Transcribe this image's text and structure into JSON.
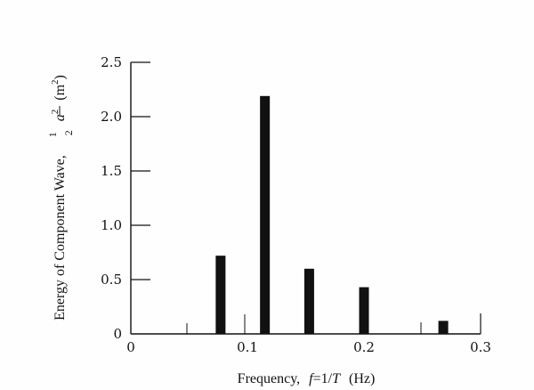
{
  "chart_data": {
    "type": "bar",
    "x": [
      0.077,
      0.115,
      0.153,
      0.2,
      0.268
    ],
    "values": [
      0.72,
      2.19,
      0.6,
      0.43,
      0.12
    ],
    "xlim": [
      0,
      0.3
    ],
    "ylim": [
      0,
      2.5
    ],
    "x_ticks": [
      "0",
      "0.1",
      "0.2",
      "0.3"
    ],
    "y_ticks": [
      "0",
      "0.5",
      "1.0",
      "1.5",
      "2.0",
      "2.5"
    ],
    "xlabel": "Frequency, f = 1/T (Hz)",
    "ylabel": "Energy of Component Wave, ½ a² (m²)",
    "grid": false,
    "bar_color": "#111111"
  },
  "labels": {
    "xlabel_prefix": "Frequency,",
    "xlabel_f": "f",
    "xlabel_eq": "=1/",
    "xlabel_T": "T",
    "xlabel_unit": "(Hz)",
    "ylabel_text": "Energy of Component Wave,",
    "ylabel_frac_num": "1",
    "ylabel_frac_den": "2",
    "ylabel_a": "a",
    "ylabel_exp": "2",
    "ylabel_unit_open": "(m",
    "ylabel_unit_exp": "2",
    "ylabel_unit_close": ")"
  }
}
